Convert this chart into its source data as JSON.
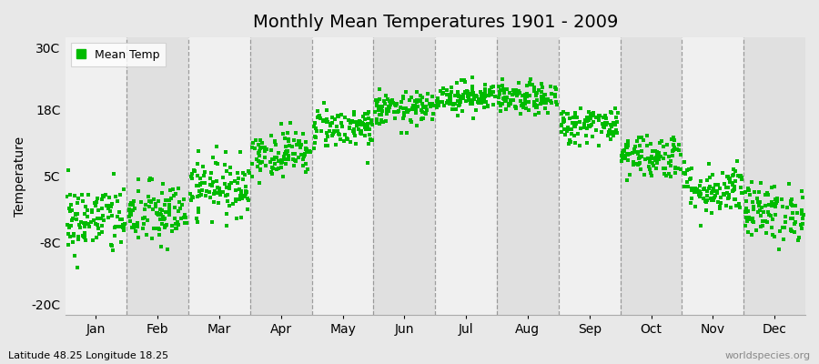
{
  "title": "Monthly Mean Temperatures 1901 - 2009",
  "ylabel": "Temperature",
  "xlabel_labels": [
    "Jan",
    "Feb",
    "Mar",
    "Apr",
    "May",
    "Jun",
    "Jul",
    "Aug",
    "Sep",
    "Oct",
    "Nov",
    "Dec"
  ],
  "subtitle": "Latitude 48.25 Longitude 18.25",
  "watermark": "worldspecies.org",
  "legend_label": "Mean Temp",
  "dot_color": "#00bb00",
  "bg_color": "#e8e8e8",
  "plot_bg_color_light": "#f0f0f0",
  "plot_bg_color_dark": "#e0e0e0",
  "yticks": [
    -20,
    -8,
    5,
    18,
    30
  ],
  "ytick_labels": [
    "-20C",
    "-8C",
    "5C",
    "18C",
    "30C"
  ],
  "ylim": [
    -22,
    32
  ],
  "n_years": 109,
  "monthly_means": [
    -3.5,
    -2.5,
    3.0,
    9.5,
    14.5,
    18.0,
    20.5,
    20.0,
    15.0,
    9.0,
    2.5,
    -2.0
  ],
  "monthly_stds": [
    3.5,
    3.2,
    2.8,
    2.2,
    2.0,
    1.6,
    1.5,
    1.5,
    1.8,
    2.2,
    2.5,
    2.8
  ],
  "seed": 42,
  "figsize": [
    9.0,
    4.0
  ],
  "dpi": 100
}
